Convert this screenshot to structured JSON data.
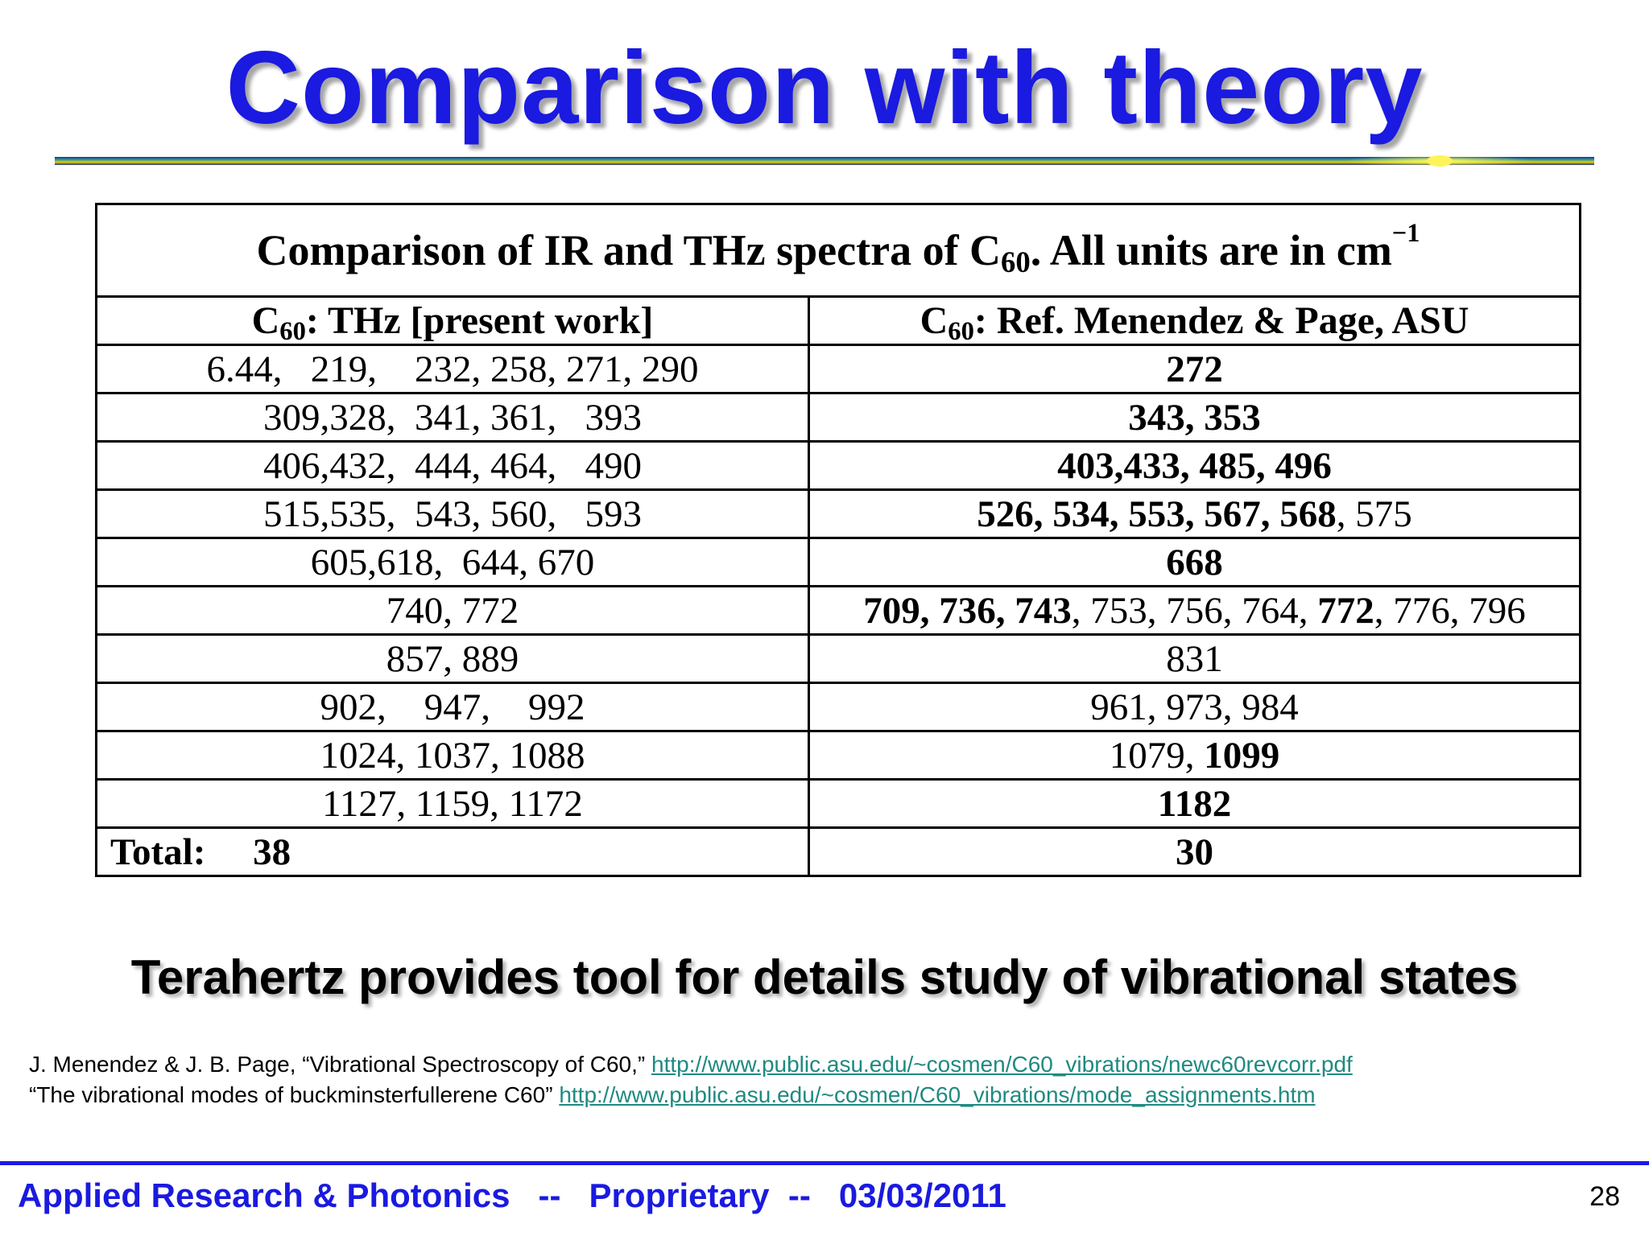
{
  "slide": {
    "title": "Comparison with theory",
    "takeaway": "Terahertz provides tool for details study of vibrational states",
    "page_number": "28"
  },
  "table": {
    "caption": {
      "before": "Comparison of IR and THz spectra of C",
      "sub": "60",
      "after": ".  All units are in cm",
      "sup": "−1"
    },
    "headers": [
      {
        "prefix": "C",
        "sub": "60",
        "suffix": ": THz [present work]"
      },
      {
        "prefix": "C",
        "sub": "60",
        "suffix": ": Ref. Menendez & Page, ASU"
      }
    ],
    "rows": [
      {
        "col1": "6.44,   219,    232, 258, 271, 290",
        "col2": [
          {
            "text": "272",
            "bold": true
          }
        ]
      },
      {
        "col1": "309,328,  341, 361,   393",
        "col2": [
          {
            "text": "343, 353",
            "bold": true
          }
        ]
      },
      {
        "col1": "406,432,  444, 464,   490",
        "col2": [
          {
            "text": "403,433, 485, 496",
            "bold": true
          }
        ]
      },
      {
        "col1": "515,535,  543, 560,   593",
        "col2": [
          {
            "text": "526, 534, 553, 567, 568",
            "bold": true
          },
          {
            "text": ", 575",
            "bold": false
          }
        ]
      },
      {
        "col1": "605,618,  644, 670",
        "col2": [
          {
            "text": "668",
            "bold": true
          }
        ]
      },
      {
        "col1": "740, 772",
        "col2": [
          {
            "text": "709, 736, 743",
            "bold": true
          },
          {
            "text": ", 753, 756, 764, ",
            "bold": false
          },
          {
            "text": "772",
            "bold": true
          },
          {
            "text": ", 776, 796",
            "bold": false
          }
        ]
      },
      {
        "col1": "857, 889",
        "col2": [
          {
            "text": "831",
            "bold": false
          }
        ]
      },
      {
        "col1": "902,    947,    992",
        "col2": [
          {
            "text": "961, 973, 984",
            "bold": false
          }
        ]
      },
      {
        "col1": "1024, 1037, 1088",
        "col2": [
          {
            "text": "1079, ",
            "bold": false
          },
          {
            "text": "1099",
            "bold": true
          }
        ]
      },
      {
        "col1": "1127, 1159, 1172",
        "col2": [
          {
            "text": "1182",
            "bold": true
          }
        ]
      }
    ],
    "total": {
      "label": "Total:",
      "col1_value": "38",
      "col2_value": "30"
    }
  },
  "references": [
    {
      "text": "J. Menendez & J. B. Page, “Vibrational Spectroscopy of C60,”",
      "link": "http://www.public.asu.edu/~cosmen/C60_vibrations/newc60revcorr.pdf"
    },
    {
      "text": "“The vibrational modes of buckminsterfullerene C60”",
      "link": "http://www.public.asu.edu/~cosmen/C60_vibrations/mode_assignments.htm"
    }
  ],
  "footer": {
    "org": "Applied Research & Photonics",
    "separator": "--",
    "label": "Proprietary",
    "date": "03/03/2011"
  },
  "colors": {
    "title_blue": "#1a1ae0",
    "link_teal": "#1f8a80",
    "rule_teal": "#2a9d9a",
    "rule_gold": "#e8d000"
  }
}
